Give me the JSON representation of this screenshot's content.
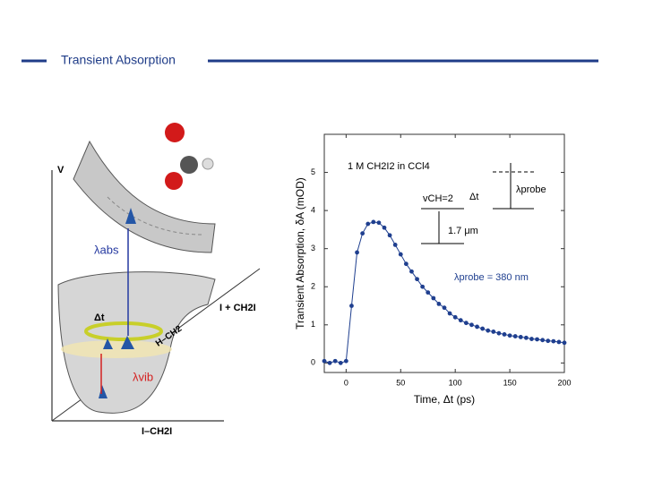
{
  "header": {
    "title": "Transient Absorption"
  },
  "diagram": {
    "axis_v": "V",
    "lambda_abs": "λabs",
    "delta_t": "Δt",
    "lambda_vib": "λvib",
    "product": "I + CH2I",
    "coord_h": "H–CH2",
    "coord_i": "I–CH2I"
  },
  "chart_data": {
    "type": "scatter",
    "xlabel": "Time, Δt (ps)",
    "ylabel": "Transient Absorption, δA (mOD)",
    "annotations": [
      "1 M CH2I2 in CCl4",
      "vCH=2",
      "Δt",
      "1.7 μm",
      "λprobe",
      "λprobe = 380 nm"
    ],
    "xlim": [
      -20,
      200
    ],
    "xticks": [
      0,
      50,
      100,
      150,
      200
    ],
    "ylim": [
      -0.25,
      6
    ],
    "yticks": [
      0,
      1,
      2,
      3,
      4,
      5
    ],
    "color": "#1f3f8f",
    "x": [
      -20,
      -15,
      -10,
      -5,
      0,
      5,
      10,
      15,
      20,
      25,
      30,
      35,
      40,
      45,
      50,
      55,
      60,
      65,
      70,
      75,
      80,
      85,
      90,
      95,
      100,
      105,
      110,
      115,
      120,
      125,
      130,
      135,
      140,
      145,
      150,
      155,
      160,
      165,
      170,
      175,
      180,
      185,
      190,
      195,
      200
    ],
    "values": [
      0.05,
      0.0,
      0.05,
      0.0,
      0.05,
      1.5,
      2.9,
      3.4,
      3.65,
      3.7,
      3.68,
      3.55,
      3.35,
      3.1,
      2.85,
      2.6,
      2.4,
      2.2,
      2.0,
      1.85,
      1.7,
      1.55,
      1.45,
      1.3,
      1.2,
      1.12,
      1.05,
      1.0,
      0.95,
      0.9,
      0.85,
      0.82,
      0.78,
      0.75,
      0.72,
      0.7,
      0.68,
      0.66,
      0.63,
      0.62,
      0.6,
      0.58,
      0.57,
      0.55,
      0.53
    ]
  }
}
